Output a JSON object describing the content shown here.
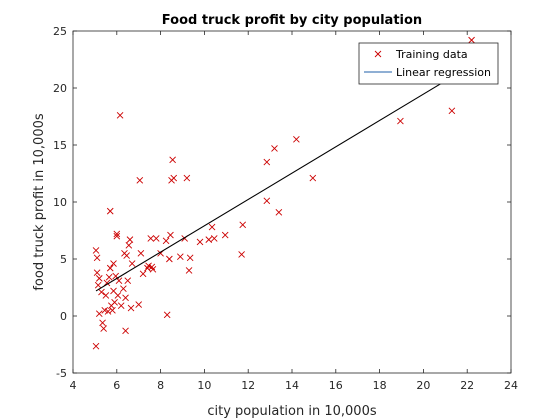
{
  "chart_data": {
    "type": "scatter",
    "title": "Food truck profit by city population",
    "xlabel": "city population in 10,000s",
    "ylabel": "food truck profit in 10,000s",
    "xlim": [
      4,
      24
    ],
    "ylim": [
      -5,
      25
    ],
    "xticks": [
      4,
      6,
      8,
      10,
      12,
      14,
      16,
      18,
      20,
      22,
      24
    ],
    "yticks": [
      -5,
      0,
      5,
      10,
      15,
      20,
      25
    ],
    "grid": false,
    "legend": {
      "position": "top-right",
      "entries": [
        "Training data",
        "Linear regression"
      ]
    },
    "series": [
      {
        "name": "Training data",
        "kind": "marker-x",
        "color": "#cc0000",
        "points": [
          [
            5.05,
            -2.65
          ],
          [
            5.05,
            5.75
          ],
          [
            5.1,
            3.8
          ],
          [
            5.1,
            5.1
          ],
          [
            5.15,
            2.7
          ],
          [
            5.2,
            0.2
          ],
          [
            5.2,
            3.3
          ],
          [
            5.3,
            2.1
          ],
          [
            5.35,
            -0.6
          ],
          [
            5.4,
            -1.1
          ],
          [
            5.45,
            0.5
          ],
          [
            5.5,
            1.8
          ],
          [
            5.55,
            2.9
          ],
          [
            5.6,
            0.4
          ],
          [
            5.65,
            3.4
          ],
          [
            5.7,
            4.2
          ],
          [
            5.7,
            9.2
          ],
          [
            5.75,
            0.9
          ],
          [
            5.8,
            0.5
          ],
          [
            5.85,
            2.2
          ],
          [
            5.85,
            4.6
          ],
          [
            5.9,
            1.2
          ],
          [
            5.95,
            3.5
          ],
          [
            6.0,
            7.0
          ],
          [
            6.0,
            7.2
          ],
          [
            6.05,
            1.8
          ],
          [
            6.1,
            3.1
          ],
          [
            6.15,
            17.6
          ],
          [
            6.2,
            0.9
          ],
          [
            6.3,
            2.4
          ],
          [
            6.35,
            5.5
          ],
          [
            6.4,
            1.6
          ],
          [
            6.4,
            -1.3
          ],
          [
            6.45,
            5.3
          ],
          [
            6.5,
            3.1
          ],
          [
            6.55,
            6.2
          ],
          [
            6.6,
            6.7
          ],
          [
            6.65,
            0.7
          ],
          [
            6.7,
            4.6
          ],
          [
            7.0,
            1.0
          ],
          [
            7.05,
            11.9
          ],
          [
            7.1,
            5.5
          ],
          [
            7.2,
            3.7
          ],
          [
            7.4,
            4.2
          ],
          [
            7.45,
            4.4
          ],
          [
            7.55,
            6.8
          ],
          [
            7.6,
            4.3
          ],
          [
            7.65,
            4.1
          ],
          [
            7.8,
            6.8
          ],
          [
            8.0,
            5.5
          ],
          [
            8.25,
            6.6
          ],
          [
            8.3,
            0.1
          ],
          [
            8.4,
            5.0
          ],
          [
            8.45,
            7.1
          ],
          [
            8.5,
            11.9
          ],
          [
            8.55,
            13.7
          ],
          [
            8.6,
            12.1
          ],
          [
            8.9,
            5.2
          ],
          [
            9.1,
            6.8
          ],
          [
            9.2,
            12.1
          ],
          [
            9.3,
            4.0
          ],
          [
            9.35,
            5.1
          ],
          [
            9.8,
            6.5
          ],
          [
            10.2,
            6.7
          ],
          [
            10.35,
            7.8
          ],
          [
            10.45,
            6.8
          ],
          [
            10.95,
            7.1
          ],
          [
            11.7,
            5.4
          ],
          [
            11.75,
            8.0
          ],
          [
            12.85,
            10.1
          ],
          [
            12.85,
            13.5
          ],
          [
            13.2,
            14.7
          ],
          [
            13.4,
            9.1
          ],
          [
            14.2,
            15.5
          ],
          [
            14.95,
            12.1
          ],
          [
            18.95,
            17.1
          ],
          [
            21.3,
            18.0
          ],
          [
            22.2,
            24.2
          ]
        ]
      },
      {
        "name": "Linear regression",
        "kind": "line",
        "color": "#000000",
        "x": [
          5.05,
          22.2
        ],
        "y": [
          2.2,
          22.0
        ]
      }
    ]
  }
}
